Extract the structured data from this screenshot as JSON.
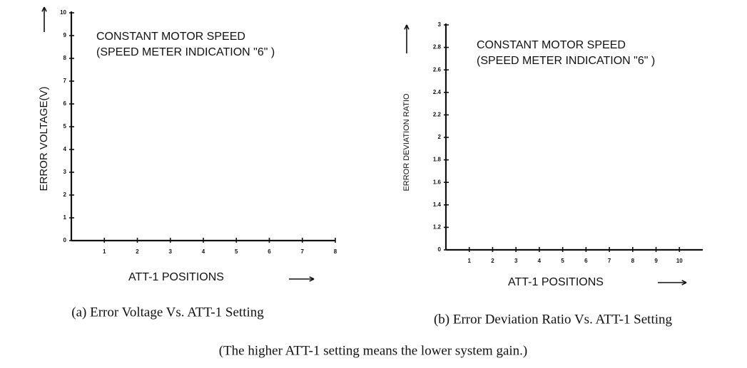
{
  "chart_data": [
    {
      "type": "line",
      "annotation": [
        "CONSTANT MOTOR SPEED",
        "(SPEED METER INDICATION \"6\" )"
      ],
      "ylabel": "ERROR VOLTAGE(V)",
      "xlabel": "ATT-1  POSITIONS",
      "caption": "(a) Error Voltage Vs. ATT-1 Setting",
      "xlim": [
        0,
        8
      ],
      "xticks": [
        1,
        2,
        3,
        4,
        5,
        6,
        7,
        8
      ],
      "ylim": [
        0,
        10
      ],
      "yticks": [
        0,
        1,
        2,
        3,
        4,
        5,
        6,
        7,
        8,
        9,
        10
      ]
    },
    {
      "type": "line",
      "annotation": [
        "CONSTANT MOTOR SPEED",
        "(SPEED METER INDICATION \"6\" )"
      ],
      "ylabel": "ERROR DEVIATION RATIO",
      "xlabel": "ATT-1 POSITIONS",
      "caption": "(b) Error Deviation Ratio Vs. ATT-1 Setting",
      "xlim": [
        0,
        11
      ],
      "xticks": [
        1,
        2,
        3,
        4,
        5,
        6,
        7,
        8,
        9,
        10
      ],
      "ylim": [
        0,
        3
      ],
      "yticks": [
        0,
        {
          "value": 1.2,
          "label": "1.2"
        },
        {
          "value": 1.4,
          "label": "1.4"
        },
        {
          "value": 1.6,
          "label": "1.6"
        },
        {
          "value": 1.8,
          "label": "1.8"
        },
        2,
        {
          "value": 2.2,
          "label": "2.2"
        },
        {
          "value": 2.4,
          "label": "2.4"
        },
        {
          "value": 2.6,
          "label": "2.6"
        },
        {
          "value": 2.8,
          "label": "2.8"
        },
        3
      ]
    }
  ],
  "footnote": "(The higher ATT-1 setting means the lower system gain.)"
}
